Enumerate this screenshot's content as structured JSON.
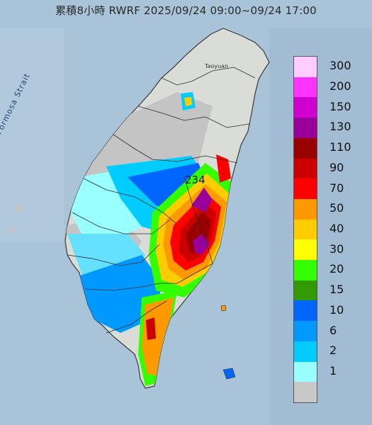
{
  "title": "累積8小時 RWRF 2025/09/24 09:00~09/24 17:00",
  "sea_label": "Formosa Strait",
  "city_label": "Taoyuan",
  "peak_value": "234",
  "legend": {
    "items": [
      {
        "label": "300",
        "color": "#ffccff"
      },
      {
        "label": "200",
        "color": "#ff33ff"
      },
      {
        "label": "150",
        "color": "#d000d0"
      },
      {
        "label": "130",
        "color": "#990099"
      },
      {
        "label": "110",
        "color": "#990000"
      },
      {
        "label": "90",
        "color": "#cc0000"
      },
      {
        "label": "70",
        "color": "#ff0000"
      },
      {
        "label": "50",
        "color": "#ff9900"
      },
      {
        "label": "40",
        "color": "#ffcc00"
      },
      {
        "label": "30",
        "color": "#ffff00"
      },
      {
        "label": "20",
        "color": "#33ff00"
      },
      {
        "label": "15",
        "color": "#339900"
      },
      {
        "label": "10",
        "color": "#0066ff"
      },
      {
        "label": "6",
        "color": "#0099ff"
      },
      {
        "label": "2",
        "color": "#00ccff"
      },
      {
        "label": "1",
        "color": "#99ffff"
      },
      {
        "label": "",
        "color": "#c8c8c8"
      }
    ]
  },
  "colors": {
    "sea": "#a9c3d8",
    "no_rain": "#c4c4c4",
    "land_base": "#d9dcd7",
    "boundary": "#2b2b2b"
  }
}
